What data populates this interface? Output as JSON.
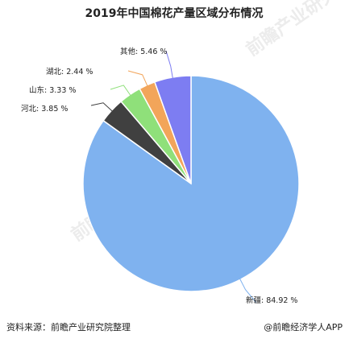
{
  "chart_data": {
    "type": "pie",
    "title": "2019年中国棉花产量区域分布情况",
    "slices": [
      {
        "name": "新疆",
        "value": 84.92,
        "label": "新疆: 84.92 %",
        "color": "#7fb2ef"
      },
      {
        "name": "河北",
        "value": 3.85,
        "label": "河北: 3.85 %",
        "color": "#404040"
      },
      {
        "name": "山东",
        "value": 3.33,
        "label": "山东: 3.33 %",
        "color": "#8fe07a"
      },
      {
        "name": "湖北",
        "value": 2.44,
        "label": "湖北: 2.44 %",
        "color": "#f2a55a"
      },
      {
        "name": "其他",
        "value": 5.46,
        "label": "其他: 5.46 %",
        "color": "#7d7df2"
      }
    ],
    "legend": "none"
  },
  "footer": {
    "source": "资料来源：前瞻产业研究院整理",
    "credit": "@前瞻经济学人APP"
  },
  "watermark": {
    "text": "前瞻产业研究院"
  }
}
